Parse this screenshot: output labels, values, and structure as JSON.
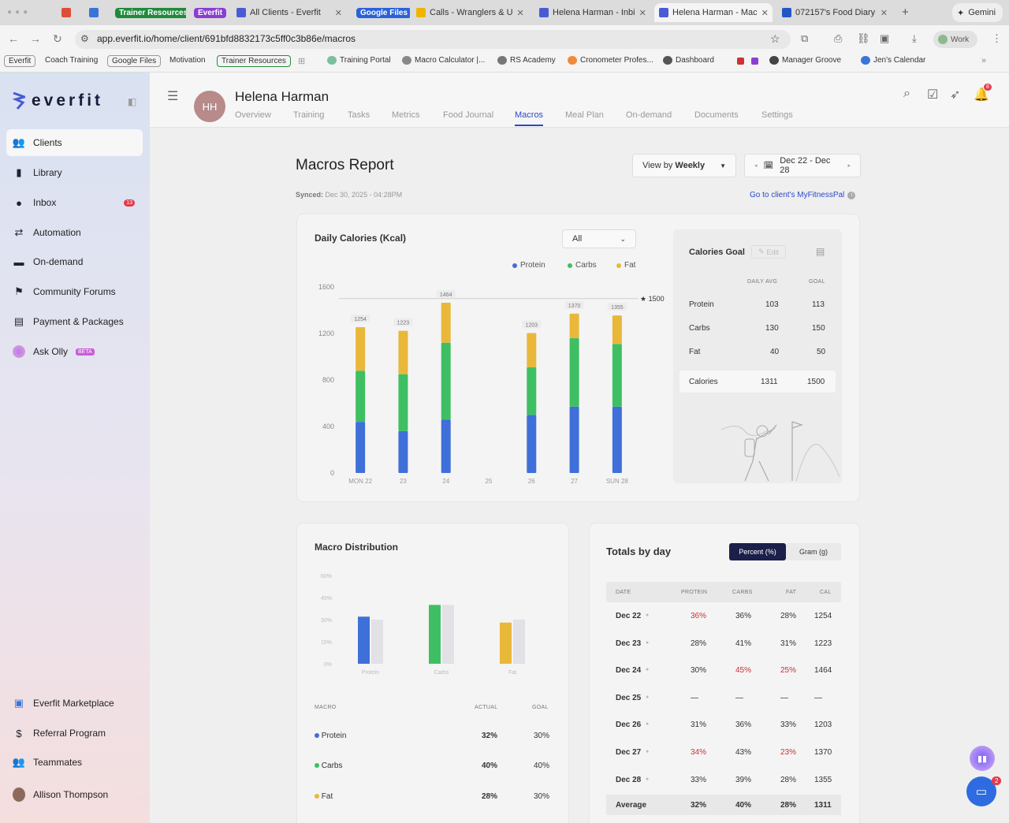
{
  "browser": {
    "tabs": [
      {
        "label": "Trainer Resources",
        "kind": "group",
        "color": "#1f8a3c"
      },
      {
        "label": "Everfit",
        "kind": "group",
        "color": "#8a3fd1"
      },
      {
        "label": "All Clients - Everfit"
      },
      {
        "label": "Google Files",
        "kind": "group",
        "color": "#2a62d8"
      },
      {
        "label": "Calls - Wranglers & U"
      },
      {
        "label": "Helena Harman - Inbi"
      },
      {
        "label": "Helena Harman - Mac",
        "active": true
      },
      {
        "label": "072157's Food Diary"
      },
      {
        "label": "Gemini"
      }
    ],
    "url": "app.everfit.io/home/client/691bfd8832173c5ff0c3b86e/macros",
    "profile": "Work",
    "bookmarks": [
      "Everfit",
      "Coach Training",
      "Google Files",
      "Motivation",
      "Trainer Resources",
      "Training Portal",
      "Macro Calculator |...",
      "RS Academy",
      "Cronometer Profes...",
      "Dashboard",
      "Manager Groove",
      "Jen's Calendar"
    ]
  },
  "sidebar": {
    "logo": "everfit",
    "items": [
      {
        "label": "Clients",
        "icon": "users-icon",
        "active": true
      },
      {
        "label": "Library",
        "icon": "book-icon"
      },
      {
        "label": "Inbox",
        "icon": "chat-icon",
        "badge": "13"
      },
      {
        "label": "Automation",
        "icon": "automation-icon"
      },
      {
        "label": "On-demand",
        "icon": "folder-icon"
      },
      {
        "label": "Community Forums",
        "icon": "forum-icon"
      },
      {
        "label": "Payment & Packages",
        "icon": "card-icon"
      },
      {
        "label": "Ask Olly",
        "icon": "olly-icon",
        "badge": "BETA"
      }
    ],
    "bottom": [
      {
        "label": "Everfit Marketplace",
        "icon": "marketplace-icon"
      },
      {
        "label": "Referral Program",
        "icon": "dollar-icon"
      },
      {
        "label": "Teammates",
        "icon": "team-icon"
      },
      {
        "label": "Allison Thompson",
        "icon": "avatar-icon"
      }
    ]
  },
  "header": {
    "initials": "HH",
    "client_name": "Helena Harman",
    "tabs": [
      "Overview",
      "Training",
      "Tasks",
      "Metrics",
      "Food Journal",
      "Macros",
      "Meal Plan",
      "On-demand",
      "Documents",
      "Settings"
    ],
    "notif_count": "8"
  },
  "report": {
    "title": "Macros Report",
    "synced_label": "Synced:",
    "synced_value": "Dec 30, 2025 - 04:28PM",
    "view_prefix": "View by",
    "view_value": "Weekly",
    "date_range": "Dec 22 - Dec 28",
    "mfp_link": "Go to client's MyFitnessPal"
  },
  "daily_calories": {
    "title": "Daily Calories (Kcal)",
    "filter": "All",
    "goal_label": "1500"
  },
  "chart_data": [
    {
      "type": "bar",
      "stacked": true,
      "title": "Daily Calories (Kcal)",
      "categories": [
        "MON 22",
        "23",
        "24",
        "25",
        "26",
        "27",
        "SUN 28"
      ],
      "series": [
        {
          "name": "Protein",
          "color": "#3f6fd8",
          "values": [
            440,
            360,
            460,
            0,
            500,
            570,
            570
          ]
        },
        {
          "name": "Carbs",
          "color": "#3fbf63",
          "values": [
            440,
            490,
            660,
            0,
            410,
            590,
            540
          ]
        },
        {
          "name": "Fat",
          "color": "#e9b83a",
          "values": [
            374,
            373,
            344,
            0,
            293,
            210,
            245
          ]
        }
      ],
      "totals": [
        1254,
        1223,
        1464,
        null,
        1203,
        1370,
        1355
      ],
      "goal": 1500,
      "yticks": [
        0,
        400,
        800,
        1200,
        1600
      ],
      "ylim": [
        0,
        1600
      ]
    },
    {
      "type": "bar",
      "title": "Macro Distribution",
      "categories": [
        "Protein",
        "Carbs",
        "Fat"
      ],
      "series": [
        {
          "name": "Actual",
          "values": [
            32,
            40,
            28
          ],
          "colors": [
            "#3f6fd8",
            "#3fbf63",
            "#e9b83a"
          ]
        },
        {
          "name": "Goal",
          "values": [
            30,
            40,
            30
          ],
          "color": "#e1e1e6"
        }
      ],
      "yticks": [
        "0%",
        "15%",
        "30%",
        "45%",
        "60%"
      ],
      "ylim": [
        0,
        60
      ]
    }
  ],
  "calories_goal": {
    "title": "Calories Goal",
    "edit": "Edit",
    "col_avg": "DAILY AVG",
    "col_goal": "GOAL",
    "rows": [
      {
        "label": "Protein",
        "avg": "103",
        "goal": "113"
      },
      {
        "label": "Carbs",
        "avg": "130",
        "goal": "150"
      },
      {
        "label": "Fat",
        "avg": "40",
        "goal": "50"
      }
    ],
    "total": {
      "label": "Calories",
      "avg": "1311",
      "goal": "1500"
    }
  },
  "macro_distribution": {
    "title": "Macro Distribution",
    "headers": [
      "MACRO",
      "ACTUAL",
      "GOAL"
    ],
    "rows": [
      {
        "label": "Protein",
        "actual": "32%",
        "goal": "30%",
        "color": "#3f6fd8"
      },
      {
        "label": "Carbs",
        "actual": "40%",
        "goal": "40%",
        "color": "#3fbf63"
      },
      {
        "label": "Fat",
        "actual": "28%",
        "goal": "30%",
        "color": "#e9b83a"
      }
    ]
  },
  "totals_by_day": {
    "title": "Totals by day",
    "toggle": [
      "Percent (%)",
      "Gram (g)"
    ],
    "headers": [
      "DATE",
      "PROTEIN",
      "CARBS",
      "FAT",
      "CAL"
    ],
    "rows": [
      {
        "date": "Dec 22",
        "p": "36%",
        "c": "36%",
        "f": "28%",
        "cal": "1254",
        "pr": true
      },
      {
        "date": "Dec 23",
        "p": "28%",
        "c": "41%",
        "f": "31%",
        "cal": "1223"
      },
      {
        "date": "Dec 24",
        "p": "30%",
        "c": "45%",
        "f": "25%",
        "cal": "1464",
        "cr": true,
        "fr": true
      },
      {
        "date": "Dec 25",
        "p": "—",
        "c": "—",
        "f": "—",
        "cal": "—"
      },
      {
        "date": "Dec 26",
        "p": "31%",
        "c": "36%",
        "f": "33%",
        "cal": "1203"
      },
      {
        "date": "Dec 27",
        "p": "34%",
        "c": "43%",
        "f": "23%",
        "cal": "1370",
        "pr": true,
        "fr": true
      },
      {
        "date": "Dec 28",
        "p": "33%",
        "c": "39%",
        "f": "28%",
        "cal": "1355"
      }
    ],
    "average": {
      "date": "Average",
      "p": "32%",
      "c": "40%",
      "f": "28%",
      "cal": "1311"
    }
  },
  "chat_badge": "2"
}
